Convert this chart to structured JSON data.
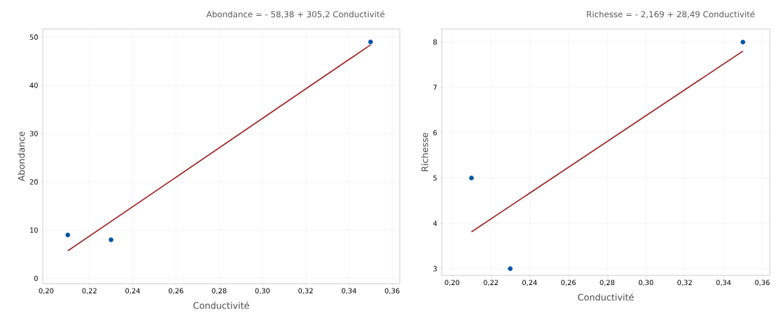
{
  "chart_data": [
    {
      "type": "scatter",
      "title": "Abondance = - 58,38 + 305,2 Conductivité",
      "xlabel": "Conductivité",
      "ylabel": "Abondance",
      "xlim": [
        0.1984,
        0.3635
      ],
      "ylim": [
        -1.1,
        51.7
      ],
      "xticks": [
        {
          "value": 0.2,
          "label": "0,20"
        },
        {
          "value": 0.22,
          "label": "0,22"
        },
        {
          "value": 0.24,
          "label": "0,24"
        },
        {
          "value": 0.26,
          "label": "0,26"
        },
        {
          "value": 0.28,
          "label": "0,28"
        },
        {
          "value": 0.3,
          "label": "0,30"
        },
        {
          "value": 0.32,
          "label": "0,32"
        },
        {
          "value": 0.34,
          "label": "0,34"
        },
        {
          "value": 0.36,
          "label": "0,36"
        }
      ],
      "yticks": [
        0,
        10,
        20,
        30,
        40,
        50
      ],
      "grid": true,
      "series": [
        {
          "marker": "circle",
          "color": "#0054a6",
          "x": [
            0.21,
            0.23,
            0.35
          ],
          "values": [
            9,
            8,
            49
          ]
        },
        {
          "type": "line",
          "color": "#a0282a",
          "x": [
            0.21,
            0.35
          ],
          "values": [
            5.7,
            48.4
          ]
        }
      ]
    },
    {
      "type": "scatter",
      "title": "Richesse = - 2,169 + 28,49 Conductivité",
      "xlabel": "Conductivité",
      "ylabel": "Richesse",
      "xlim": [
        0.1947,
        0.3639
      ],
      "ylim": [
        2.85,
        8.29
      ],
      "xticks": [
        {
          "value": 0.2,
          "label": "0,20"
        },
        {
          "value": 0.22,
          "label": "0,22"
        },
        {
          "value": 0.24,
          "label": "0,24"
        },
        {
          "value": 0.26,
          "label": "0,26"
        },
        {
          "value": 0.28,
          "label": "0,28"
        },
        {
          "value": 0.3,
          "label": "0,30"
        },
        {
          "value": 0.32,
          "label": "0,32"
        },
        {
          "value": 0.34,
          "label": "0,34"
        },
        {
          "value": 0.36,
          "label": "0,36"
        }
      ],
      "yticks": [
        3,
        4,
        5,
        6,
        7,
        8
      ],
      "grid": true,
      "series": [
        {
          "marker": "circle",
          "color": "#0054a6",
          "x": [
            0.21,
            0.23,
            0.35
          ],
          "values": [
            5,
            3,
            8
          ]
        },
        {
          "type": "line",
          "color": "#a0282a",
          "x": [
            0.21,
            0.35
          ],
          "values": [
            3.81,
            7.8
          ]
        }
      ]
    }
  ]
}
